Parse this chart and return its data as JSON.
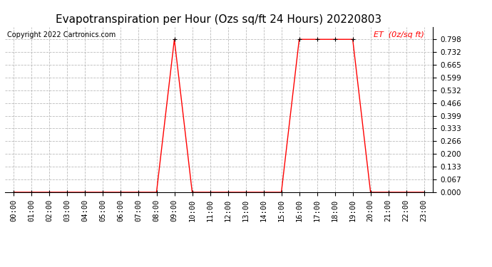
{
  "title": "Evapotranspiration per Hour (Ozs sq/ft 24 Hours) 20220803",
  "copyright_text": "Copyright 2022 Cartronics.com",
  "legend_label": "ET  (0z/sq ft)",
  "line_color": "#FF0000",
  "marker_color": "#000000",
  "background_color": "#FFFFFF",
  "grid_color": "#BBBBBB",
  "hours": [
    "00:00",
    "01:00",
    "02:00",
    "03:00",
    "04:00",
    "05:00",
    "06:00",
    "07:00",
    "08:00",
    "09:00",
    "10:00",
    "11:00",
    "12:00",
    "13:00",
    "14:00",
    "15:00",
    "16:00",
    "17:00",
    "18:00",
    "19:00",
    "20:00",
    "21:00",
    "22:00",
    "23:00"
  ],
  "values": [
    0.0,
    0.0,
    0.0,
    0.0,
    0.0,
    0.0,
    0.0,
    0.0,
    0.0,
    0.798,
    0.0,
    0.0,
    0.0,
    0.0,
    0.0,
    0.0,
    0.798,
    0.798,
    0.798,
    0.798,
    0.0,
    0.0,
    0.0,
    0.0
  ],
  "ylim": [
    0.0,
    0.864
  ],
  "yticks": [
    0.0,
    0.067,
    0.133,
    0.2,
    0.266,
    0.333,
    0.399,
    0.466,
    0.532,
    0.599,
    0.665,
    0.732,
    0.798
  ],
  "title_fontsize": 11,
  "copyright_fontsize": 7,
  "legend_fontsize": 8,
  "tick_fontsize": 7.5
}
